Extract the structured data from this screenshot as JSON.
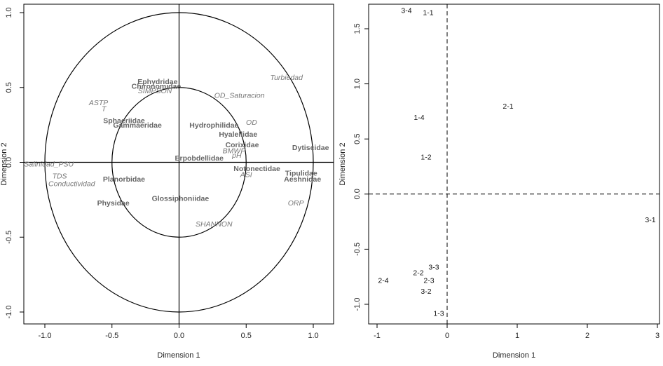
{
  "chart_data": [
    {
      "type": "scatter",
      "subtype": "correlation-circle",
      "xlabel": "Dimension 1",
      "ylabel": "Dimension 2",
      "xlim": [
        -1.0,
        1.0
      ],
      "ylim": [
        -1.0,
        1.0
      ],
      "x_ticks": [
        "-1.0",
        "-0.5",
        "0.0",
        "0.5",
        "1.0"
      ],
      "y_ticks": [
        "-1.0",
        "-0.5",
        "0.0",
        "0.5",
        "1.0"
      ],
      "circles": [
        1.0,
        0.5
      ],
      "reference_lines": [
        {
          "axis": "x",
          "value": 0
        },
        {
          "axis": "y",
          "value": 0
        }
      ],
      "colors": {
        "taxa": "#666666",
        "variables": "#777777",
        "lines": "#000000"
      },
      "taxa": [
        {
          "label": "Ephydridae",
          "x": -0.16,
          "y": 0.54
        },
        {
          "label": "Chironomidae",
          "x": -0.17,
          "y": 0.51
        },
        {
          "label": "Sphaeriidae",
          "x": -0.41,
          "y": 0.28
        },
        {
          "label": "Gammaeridae",
          "x": -0.31,
          "y": 0.25
        },
        {
          "label": "Hydrophilidae",
          "x": 0.26,
          "y": 0.25
        },
        {
          "label": "Hyalellidae",
          "x": 0.44,
          "y": 0.19
        },
        {
          "label": "Corixidae",
          "x": 0.47,
          "y": 0.12
        },
        {
          "label": "Dytiscidae",
          "x": 0.98,
          "y": 0.1
        },
        {
          "label": "Erpobdellidae",
          "x": 0.15,
          "y": 0.03
        },
        {
          "label": "Notonectidae",
          "x": 0.58,
          "y": -0.04
        },
        {
          "label": "Tipulidae",
          "x": 0.91,
          "y": -0.07
        },
        {
          "label": "Aeshnidae",
          "x": 0.92,
          "y": -0.11
        },
        {
          "label": "Planorbidae",
          "x": -0.41,
          "y": -0.11
        },
        {
          "label": "Glossiphoniidae",
          "x": 0.01,
          "y": -0.24
        },
        {
          "label": "Physidae",
          "x": -0.49,
          "y": -0.27
        }
      ],
      "variables": [
        {
          "label": "Turbiedad",
          "x": 0.8,
          "y": 0.57
        },
        {
          "label": "SIMPSON",
          "x": -0.18,
          "y": 0.48
        },
        {
          "label": "OD_Saturacion",
          "x": 0.45,
          "y": 0.45
        },
        {
          "label": "ASTP",
          "x": -0.6,
          "y": 0.4
        },
        {
          "label": "T",
          "x": -0.56,
          "y": 0.36
        },
        {
          "label": "OD",
          "x": 0.54,
          "y": 0.27
        },
        {
          "label": "BMWP",
          "x": 0.41,
          "y": 0.08
        },
        {
          "label": "pH",
          "x": 0.43,
          "y": 0.05
        },
        {
          "label": "Salinidad_PSU",
          "x": -0.97,
          "y": -0.01
        },
        {
          "label": "ASI",
          "x": 0.5,
          "y": -0.08
        },
        {
          "label": "TDS",
          "x": -0.89,
          "y": -0.09
        },
        {
          "label": "Conductividad",
          "x": -0.8,
          "y": -0.14
        },
        {
          "label": "ORP",
          "x": 0.87,
          "y": -0.27
        },
        {
          "label": "SHANNON",
          "x": 0.26,
          "y": -0.41
        }
      ]
    },
    {
      "type": "scatter",
      "xlabel": "Dimension 1",
      "ylabel": "Dimension 2",
      "xlim": [
        -1.0,
        3.0
      ],
      "ylim": [
        -1.1,
        1.7
      ],
      "x_ticks": [
        "-1",
        "0",
        "1",
        "2",
        "3"
      ],
      "y_ticks": [
        "-1.0",
        "-0.5",
        "0.0",
        "0.5",
        "1.0",
        "1.5"
      ],
      "reference_lines": [
        {
          "axis": "x",
          "value": 0,
          "style": "dashed"
        },
        {
          "axis": "y",
          "value": 0,
          "style": "dashed"
        }
      ],
      "points": [
        {
          "label": "3-4",
          "x": -0.58,
          "y": 1.67
        },
        {
          "label": "1-1",
          "x": -0.27,
          "y": 1.65
        },
        {
          "label": "2-1",
          "x": 0.87,
          "y": 0.8
        },
        {
          "label": "1-4",
          "x": -0.4,
          "y": 0.7
        },
        {
          "label": "1-2",
          "x": -0.3,
          "y": 0.34
        },
        {
          "label": "3-1",
          "x": 2.9,
          "y": -0.23
        },
        {
          "label": "3-3",
          "x": -0.19,
          "y": -0.66
        },
        {
          "label": "2-2",
          "x": -0.41,
          "y": -0.71
        },
        {
          "label": "2-4",
          "x": -0.91,
          "y": -0.78
        },
        {
          "label": "2-3",
          "x": -0.26,
          "y": -0.78
        },
        {
          "label": "3-2",
          "x": -0.3,
          "y": -0.88
        },
        {
          "label": "1-3",
          "x": -0.12,
          "y": -1.08
        }
      ]
    }
  ]
}
